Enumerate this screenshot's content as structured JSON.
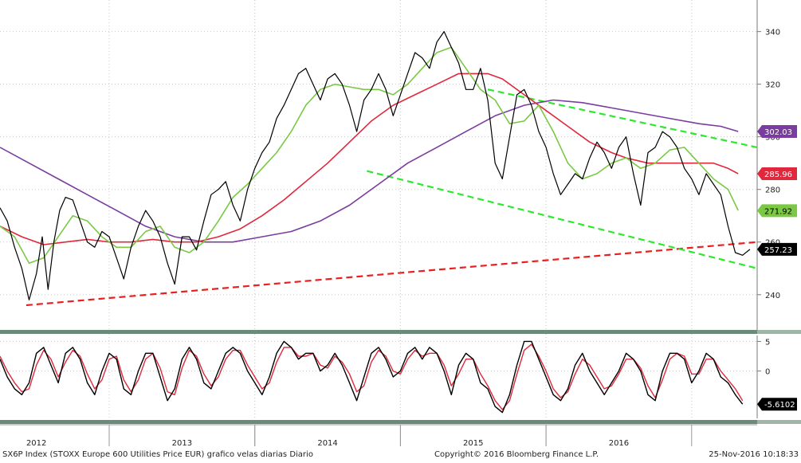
{
  "footer": {
    "left": "SX6P Index (STOXX Europe 600 Utilities Price EUR) grafico velas diarias  Diario",
    "center": "Copyright© 2016 Bloomberg Finance L.P.",
    "right": "25-Nov-2016 10:18:33"
  },
  "colors": {
    "price": "#000000",
    "ma_short": "#7ac943",
    "ma_mid": "#e0283c",
    "ma_long": "#7a3c9e",
    "trend_green": "#2ee82e",
    "trend_red": "#ea2020",
    "grid": "#c8c8c8",
    "sep": "#6a8a7a"
  },
  "chart_data": [
    {
      "type": "line",
      "panel": "price",
      "xlim": [
        2011.75,
        2016.95
      ],
      "ylim": [
        226,
        352
      ],
      "y_ticks": [
        240,
        260,
        280,
        300,
        320,
        340
      ],
      "x_ticks": [
        "2012",
        "2013",
        "2014",
        "2015",
        "2016"
      ],
      "x_tick_positions": [
        2012.0,
        2013.0,
        2014.0,
        2015.0,
        2016.0
      ],
      "series": [
        {
          "role": "price",
          "x": [
            2011.75,
            2011.8,
            2011.85,
            2011.9,
            2011.95,
            2012.0,
            2012.04,
            2012.08,
            2012.12,
            2012.16,
            2012.2,
            2012.25,
            2012.3,
            2012.35,
            2012.4,
            2012.45,
            2012.5,
            2012.55,
            2012.6,
            2012.65,
            2012.7,
            2012.75,
            2012.8,
            2012.85,
            2012.9,
            2012.95,
            2013.0,
            2013.05,
            2013.1,
            2013.15,
            2013.2,
            2013.25,
            2013.3,
            2013.35,
            2013.4,
            2013.45,
            2013.5,
            2013.55,
            2013.6,
            2013.65,
            2013.7,
            2013.75,
            2013.8,
            2013.85,
            2013.9,
            2013.95,
            2014.0,
            2014.05,
            2014.1,
            2014.15,
            2014.2,
            2014.25,
            2014.3,
            2014.35,
            2014.4,
            2014.45,
            2014.5,
            2014.55,
            2014.6,
            2014.65,
            2014.7,
            2014.75,
            2014.8,
            2014.85,
            2014.9,
            2014.95,
            2015.0,
            2015.05,
            2015.1,
            2015.15,
            2015.2,
            2015.25,
            2015.3,
            2015.35,
            2015.4,
            2015.45,
            2015.5,
            2015.55,
            2015.6,
            2015.65,
            2015.7,
            2015.75,
            2015.8,
            2015.85,
            2015.9,
            2015.95,
            2016.0,
            2016.05,
            2016.1,
            2016.15,
            2016.2,
            2016.25,
            2016.3,
            2016.35,
            2016.4,
            2016.45,
            2016.5,
            2016.55,
            2016.6,
            2016.65,
            2016.7,
            2016.75,
            2016.8,
            2016.85,
            2016.9
          ],
          "y": [
            273,
            268,
            258,
            250,
            238,
            248,
            262,
            242,
            260,
            272,
            277,
            276,
            268,
            260,
            258,
            264,
            262,
            254,
            246,
            258,
            266,
            272,
            268,
            262,
            252,
            244,
            262,
            262,
            257,
            268,
            278,
            280,
            283,
            274,
            268,
            280,
            288,
            294,
            298,
            307,
            312,
            318,
            324,
            326,
            320,
            314,
            322,
            324,
            320,
            312,
            302,
            314,
            318,
            324,
            318,
            308,
            316,
            324,
            332,
            330,
            326,
            336,
            340,
            334,
            328,
            318,
            318,
            326,
            314,
            290,
            284,
            300,
            316,
            318,
            312,
            302,
            296,
            286,
            278,
            282,
            286,
            284,
            292,
            298,
            294,
            288,
            296,
            300,
            286,
            274,
            294,
            296,
            302,
            300,
            296,
            288,
            284,
            278,
            286,
            282,
            278,
            266,
            256,
            255,
            257.23
          ]
        },
        {
          "role": "ma_short",
          "x": [
            2011.75,
            2011.85,
            2011.95,
            2012.05,
            2012.15,
            2012.25,
            2012.35,
            2012.45,
            2012.55,
            2012.65,
            2012.75,
            2012.85,
            2012.95,
            2013.05,
            2013.15,
            2013.25,
            2013.35,
            2013.45,
            2013.55,
            2013.65,
            2013.75,
            2013.85,
            2013.95,
            2014.05,
            2014.15,
            2014.25,
            2014.35,
            2014.45,
            2014.55,
            2014.65,
            2014.75,
            2014.85,
            2014.95,
            2015.05,
            2015.15,
            2015.25,
            2015.35,
            2015.45,
            2015.55,
            2015.65,
            2015.75,
            2015.85,
            2015.95,
            2016.05,
            2016.15,
            2016.25,
            2016.35,
            2016.45,
            2016.55,
            2016.65,
            2016.75,
            2016.82
          ],
          "y": [
            266,
            262,
            252,
            254,
            262,
            270,
            268,
            262,
            258,
            258,
            264,
            266,
            258,
            256,
            260,
            268,
            277,
            282,
            288,
            294,
            302,
            312,
            318,
            320,
            319,
            318,
            318,
            316,
            320,
            326,
            332,
            334,
            326,
            318,
            314,
            305,
            306,
            312,
            302,
            290,
            284,
            286,
            290,
            292,
            288,
            290,
            295,
            296,
            290,
            284,
            280,
            272
          ]
        },
        {
          "role": "ma_mid",
          "x": [
            2011.75,
            2011.9,
            2012.05,
            2012.2,
            2012.35,
            2012.5,
            2012.65,
            2012.8,
            2012.95,
            2013.1,
            2013.25,
            2013.4,
            2013.55,
            2013.7,
            2013.85,
            2014.0,
            2014.15,
            2014.3,
            2014.45,
            2014.6,
            2014.75,
            2014.9,
            2015.0,
            2015.1,
            2015.2,
            2015.35,
            2015.5,
            2015.65,
            2015.8,
            2015.95,
            2016.05,
            2016.2,
            2016.35,
            2016.5,
            2016.65,
            2016.75,
            2016.82
          ],
          "y": [
            266,
            262,
            259,
            260,
            261,
            260,
            260,
            261,
            260,
            260,
            262,
            265,
            270,
            276,
            283,
            290,
            298,
            306,
            312,
            316,
            320,
            324,
            324,
            324,
            322,
            316,
            310,
            304,
            298,
            294,
            292,
            290,
            290,
            290,
            290,
            288,
            285.96
          ]
        },
        {
          "role": "ma_long",
          "x": [
            2011.75,
            2011.95,
            2012.15,
            2012.35,
            2012.55,
            2012.75,
            2012.95,
            2013.15,
            2013.35,
            2013.55,
            2013.75,
            2013.95,
            2014.15,
            2014.35,
            2014.55,
            2014.75,
            2014.95,
            2015.15,
            2015.35,
            2015.55,
            2015.75,
            2015.95,
            2016.15,
            2016.35,
            2016.55,
            2016.7,
            2016.82
          ],
          "y": [
            296,
            290,
            284,
            278,
            272,
            266,
            262,
            260,
            260,
            262,
            264,
            268,
            274,
            282,
            290,
            296,
            302,
            308,
            312,
            314,
            313,
            311,
            309,
            307,
            305,
            304,
            302.03
          ]
        }
      ],
      "trendlines": [
        {
          "role": "trend_red",
          "x": [
            2011.93,
            2016.95
          ],
          "y": [
            236,
            260
          ]
        },
        {
          "role": "trend_green",
          "x": [
            2014.27,
            2016.95
          ],
          "y": [
            287,
            250
          ]
        },
        {
          "role": "trend_green",
          "x": [
            2015.1,
            2016.95
          ],
          "y": [
            318,
            296
          ]
        }
      ],
      "labels": [
        {
          "text": "302.03",
          "y": 302.03,
          "role": "ma_long"
        },
        {
          "text": "285.96",
          "y": 285.96,
          "role": "ma_mid"
        },
        {
          "text": "271.92",
          "y": 271.92,
          "role": "ma_short"
        },
        {
          "text": "257.23",
          "y": 257.23,
          "role": "price"
        }
      ]
    },
    {
      "type": "line",
      "panel": "oscillator",
      "xlim": [
        2011.75,
        2016.95
      ],
      "ylim": [
        -8,
        6
      ],
      "y_ticks": [
        5,
        0
      ],
      "series": [
        {
          "role": "price",
          "x": [
            2011.75,
            2011.8,
            2011.85,
            2011.9,
            2011.95,
            2012.0,
            2012.05,
            2012.1,
            2012.15,
            2012.2,
            2012.25,
            2012.3,
            2012.35,
            2012.4,
            2012.45,
            2012.5,
            2012.55,
            2012.6,
            2012.65,
            2012.7,
            2012.75,
            2012.8,
            2012.85,
            2012.9,
            2012.95,
            2013.0,
            2013.05,
            2013.1,
            2013.15,
            2013.2,
            2013.25,
            2013.3,
            2013.35,
            2013.4,
            2013.45,
            2013.5,
            2013.55,
            2013.6,
            2013.65,
            2013.7,
            2013.75,
            2013.8,
            2013.85,
            2013.9,
            2013.95,
            2014.0,
            2014.05,
            2014.1,
            2014.15,
            2014.2,
            2014.25,
            2014.3,
            2014.35,
            2014.4,
            2014.45,
            2014.5,
            2014.55,
            2014.6,
            2014.65,
            2014.7,
            2014.75,
            2014.8,
            2014.85,
            2014.9,
            2014.95,
            2015.0,
            2015.05,
            2015.1,
            2015.15,
            2015.2,
            2015.25,
            2015.3,
            2015.35,
            2015.4,
            2015.45,
            2015.5,
            2015.55,
            2015.6,
            2015.65,
            2015.7,
            2015.75,
            2015.8,
            2015.85,
            2015.9,
            2015.95,
            2016.0,
            2016.05,
            2016.1,
            2016.15,
            2016.2,
            2016.25,
            2016.3,
            2016.35,
            2016.4,
            2016.45,
            2016.5,
            2016.55,
            2016.6,
            2016.65,
            2016.7,
            2016.75,
            2016.8,
            2016.85
          ],
          "y": [
            2,
            -1,
            -3,
            -4,
            -2,
            3,
            4,
            1,
            -2,
            3,
            4,
            2,
            -2,
            -4,
            0,
            3,
            2,
            -3,
            -4,
            0,
            3,
            3,
            -1,
            -5,
            -3,
            2,
            4,
            2,
            -2,
            -3,
            0,
            3,
            4,
            3,
            0,
            -2,
            -4,
            -1,
            3,
            5,
            4,
            2,
            3,
            3,
            0,
            1,
            3,
            1,
            -2,
            -5,
            -1,
            3,
            4,
            2,
            -1,
            0,
            3,
            4,
            2,
            4,
            3,
            0,
            -4,
            1,
            3,
            2,
            -2,
            -3,
            -6,
            -7,
            -4,
            1,
            5,
            5,
            2,
            -1,
            -4,
            -5,
            -3,
            1,
            3,
            0,
            -2,
            -4,
            -2,
            0,
            3,
            2,
            0,
            -4,
            -5,
            0,
            3,
            3,
            2,
            -2,
            0,
            3,
            2,
            -1,
            -2,
            -4,
            -5.6102
          ]
        },
        {
          "role": "ma_mid",
          "x": [
            2011.75,
            2011.8,
            2011.85,
            2011.9,
            2011.95,
            2012.0,
            2012.05,
            2012.1,
            2012.15,
            2012.2,
            2012.25,
            2012.3,
            2012.35,
            2012.4,
            2012.45,
            2012.5,
            2012.55,
            2012.6,
            2012.65,
            2012.7,
            2012.75,
            2012.8,
            2012.85,
            2012.9,
            2012.95,
            2013.0,
            2013.05,
            2013.1,
            2013.15,
            2013.2,
            2013.25,
            2013.3,
            2013.35,
            2013.4,
            2013.45,
            2013.5,
            2013.55,
            2013.6,
            2013.65,
            2013.7,
            2013.75,
            2013.8,
            2013.85,
            2013.9,
            2013.95,
            2014.0,
            2014.05,
            2014.1,
            2014.15,
            2014.2,
            2014.25,
            2014.3,
            2014.35,
            2014.4,
            2014.45,
            2014.5,
            2014.55,
            2014.6,
            2014.65,
            2014.7,
            2014.75,
            2014.8,
            2014.85,
            2014.9,
            2014.95,
            2015.0,
            2015.05,
            2015.1,
            2015.15,
            2015.2,
            2015.25,
            2015.3,
            2015.35,
            2015.4,
            2015.45,
            2015.5,
            2015.55,
            2015.6,
            2015.65,
            2015.7,
            2015.75,
            2015.8,
            2015.85,
            2015.9,
            2015.95,
            2016.0,
            2016.05,
            2016.1,
            2016.15,
            2016.2,
            2016.25,
            2016.3,
            2016.35,
            2016.4,
            2016.45,
            2016.5,
            2016.55,
            2016.6,
            2016.65,
            2016.7,
            2016.75,
            2016.8,
            2016.85
          ],
          "y": [
            2.5,
            0,
            -2,
            -3.5,
            -3,
            1,
            3.5,
            2,
            -1,
            1.5,
            3.5,
            2.5,
            -0.5,
            -3,
            -1.5,
            2,
            2.5,
            -1.5,
            -3.5,
            -1.5,
            2,
            3,
            0.5,
            -3.5,
            -4,
            0.5,
            3.5,
            2.5,
            -0.5,
            -2.5,
            -1,
            2,
            3.5,
            3.5,
            1,
            -1,
            -3,
            -2,
            1.5,
            4,
            4,
            2.5,
            2.5,
            3,
            1,
            0.5,
            2.5,
            1.5,
            -0.5,
            -3.5,
            -2.5,
            1.5,
            3.5,
            2.5,
            0,
            -0.5,
            2,
            3.5,
            2.5,
            3,
            3,
            1,
            -2.5,
            -0.5,
            2,
            2,
            -0.5,
            -2.5,
            -5,
            -6.5,
            -5,
            -0.5,
            3.5,
            4.5,
            2.5,
            0,
            -3,
            -4.5,
            -3.5,
            -0.5,
            2,
            1,
            -1,
            -3,
            -2.5,
            -0.5,
            2,
            2,
            0.5,
            -2.5,
            -4.5,
            -1.5,
            2,
            3,
            2.5,
            -0.5,
            -0.5,
            2,
            2,
            0,
            -1.5,
            -3,
            -5
          ]
        }
      ],
      "labels": [
        {
          "text": "-5.6102",
          "y": -5.6102,
          "role": "price"
        }
      ]
    }
  ]
}
